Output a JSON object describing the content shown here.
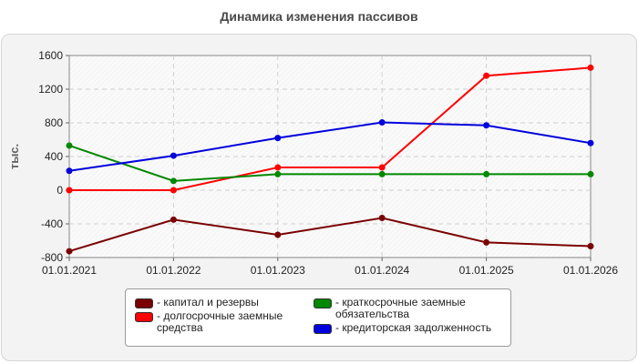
{
  "chart_data": {
    "type": "line",
    "title": "Динамика изменения пассивов",
    "ylabel": "тыс.",
    "xlabel": "",
    "categories": [
      "01.01.2021",
      "01.01.2022",
      "01.01.2023",
      "01.01.2024",
      "01.01.2025",
      "01.01.2026"
    ],
    "ylim": [
      -800,
      1600
    ],
    "yticks": [
      1600,
      1200,
      800,
      400,
      0,
      -400,
      -800
    ],
    "grid": true,
    "legend_position": "bottom",
    "series": [
      {
        "name": "капитал и резервы",
        "color": "#7a0000",
        "values": [
          -725,
          -350,
          -530,
          -330,
          -620,
          -665
        ]
      },
      {
        "name": "долгосрочные заемные средства",
        "color": "#ff0000",
        "values": [
          0,
          0,
          270,
          270,
          1360,
          1455
        ]
      },
      {
        "name": "краткосрочные заемные обязательства",
        "color": "#008800",
        "values": [
          530,
          110,
          190,
          190,
          190,
          190
        ]
      },
      {
        "name": "кредиторская задолженность",
        "color": "#0000dd",
        "values": [
          230,
          410,
          620,
          805,
          770,
          560
        ]
      }
    ]
  },
  "legend": {
    "items": [
      {
        "text": "- капитал и резервы",
        "color": "#7a0000"
      },
      {
        "text": "- долгосрочные заемные средства",
        "color": "#ff0000"
      },
      {
        "text": "- краткосрочные заемные обязательства",
        "color": "#008800"
      },
      {
        "text": "- кредиторская задолженность",
        "color": "#0000dd"
      }
    ]
  }
}
